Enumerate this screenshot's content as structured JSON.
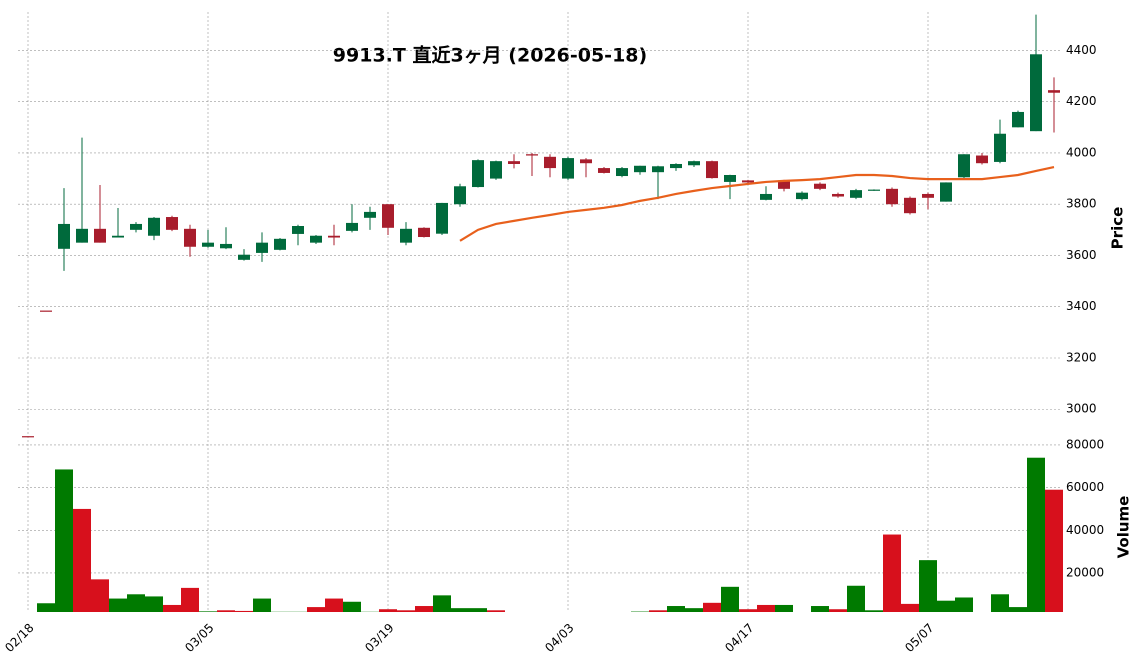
{
  "chart_data": {
    "type": "candlestick",
    "title": "9913.T  直近3ヶ月  (2026-05-18)",
    "y_label": "Price",
    "y2_label": "Volume",
    "categories": [
      "02/18",
      null,
      null,
      null,
      null,
      null,
      null,
      null,
      null,
      null,
      "03/05",
      null,
      null,
      null,
      null,
      null,
      null,
      null,
      null,
      null,
      "03/19",
      null,
      null,
      null,
      null,
      null,
      null,
      null,
      null,
      null,
      "04/03",
      null,
      null,
      null,
      null,
      null,
      null,
      null,
      null,
      null,
      "04/17",
      null,
      null,
      null,
      null,
      null,
      null,
      null,
      null,
      null,
      "05/07",
      null,
      null,
      null,
      null,
      null,
      null,
      null
    ],
    "open": [
      2895,
      3385,
      3626,
      3650,
      3704,
      3670,
      3700,
      3677,
      3750,
      3704,
      3634,
      3628,
      3583,
      3610,
      3622,
      3684,
      3650,
      3677,
      3696,
      3747,
      3800,
      3650,
      3708,
      3685,
      3800,
      3867,
      3900,
      3968,
      3995,
      3985,
      3900,
      3975,
      3941,
      3910,
      3925,
      3925,
      3941,
      3952,
      3968,
      3887,
      3893,
      3817,
      3893,
      3820,
      3880,
      3840,
      3825,
      3853,
      3860,
      3825,
      3840,
      3810,
      3905,
      3990,
      3965,
      4100,
      4085,
      4245
    ],
    "high": [
      2895,
      3385,
      3863,
      4060,
      3875,
      3785,
      3730,
      3750,
      3755,
      3720,
      3700,
      3710,
      3625,
      3690,
      3668,
      3720,
      3680,
      3720,
      3800,
      3790,
      3800,
      3730,
      3710,
      3805,
      3880,
      3975,
      3970,
      3995,
      4000,
      3995,
      3985,
      3980,
      3945,
      3945,
      3950,
      3950,
      3960,
      3970,
      3970,
      3915,
      3895,
      3870,
      3895,
      3850,
      3885,
      3845,
      3860,
      3858,
      3865,
      3830,
      3845,
      3885,
      3995,
      4000,
      4130,
      4165,
      4540,
      4295
    ],
    "low": [
      2895,
      3385,
      3540,
      3650,
      3650,
      3670,
      3690,
      3660,
      3695,
      3595,
      3630,
      3625,
      3580,
      3575,
      3620,
      3640,
      3645,
      3640,
      3690,
      3700,
      3680,
      3640,
      3670,
      3680,
      3790,
      3865,
      3895,
      3940,
      3910,
      3905,
      3895,
      3905,
      3920,
      3905,
      3915,
      3820,
      3930,
      3945,
      3900,
      3820,
      3880,
      3815,
      3850,
      3815,
      3855,
      3825,
      3820,
      3852,
      3790,
      3760,
      3780,
      3810,
      3900,
      3955,
      3960,
      4100,
      4085,
      4080
    ],
    "close": [
      2895,
      3385,
      3723,
      3704,
      3650,
      3677,
      3723,
      3747,
      3700,
      3634,
      3650,
      3645,
      3603,
      3650,
      3665,
      3715,
      3677,
      3670,
      3727,
      3770,
      3708,
      3704,
      3672,
      3805,
      3870,
      3972,
      3968,
      3957,
      3990,
      3941,
      3980,
      3960,
      3922,
      3941,
      3950,
      3948,
      3957,
      3968,
      3902,
      3914,
      3885,
      3840,
      3860,
      3845,
      3860,
      3830,
      3855,
      3857,
      3800,
      3765,
      3825,
      3885,
      3995,
      3960,
      4075,
      4160,
      4385,
      4235
    ],
    "volume": [
      1700,
      5800,
      68500,
      50000,
      17000,
      8000,
      10000,
      9000,
      5000,
      13000,
      2000,
      2500,
      2200,
      8000,
      1800,
      1800,
      4000,
      8000,
      6500,
      1800,
      3000,
      2500,
      4500,
      9500,
      3500,
      3500,
      2500,
      1500,
      1700,
      1700,
      1700,
      1700,
      1700,
      1700,
      1900,
      2500,
      4500,
      3500,
      6000,
      13500,
      3000,
      5000,
      5000,
      1700,
      4500,
      3000,
      14000,
      2500,
      38000,
      5500,
      26000,
      7000,
      8500,
      1500,
      10000,
      4000,
      74000,
      59000
    ],
    "ma": [
      null,
      null,
      null,
      null,
      null,
      null,
      null,
      null,
      null,
      null,
      null,
      null,
      null,
      null,
      null,
      null,
      null,
      null,
      null,
      null,
      null,
      null,
      null,
      null,
      3657,
      3700,
      3723,
      3735,
      3747,
      3758,
      3770,
      3778,
      3786,
      3797,
      3813,
      3825,
      3840,
      3852,
      3863,
      3871,
      3879,
      3887,
      3891,
      3894,
      3898,
      3906,
      3914,
      3914,
      3910,
      3902,
      3898,
      3898,
      3898,
      3898,
      3906,
      3914,
      3930,
      3945
    ],
    "ylim": [
      2880,
      4550
    ],
    "yticks": [
      3000,
      3200,
      3400,
      3600,
      3800,
      4000,
      4200,
      4400
    ],
    "y2lim": [
      1700,
      82300
    ],
    "y2ticks": [
      20000,
      40000,
      60000,
      80000
    ],
    "grid": true,
    "colors": {
      "up": "#006a3c",
      "down": "#a81d2c",
      "volume_up": "#007a00",
      "volume_down": "#d7101c",
      "ma": "#e8601c"
    }
  }
}
